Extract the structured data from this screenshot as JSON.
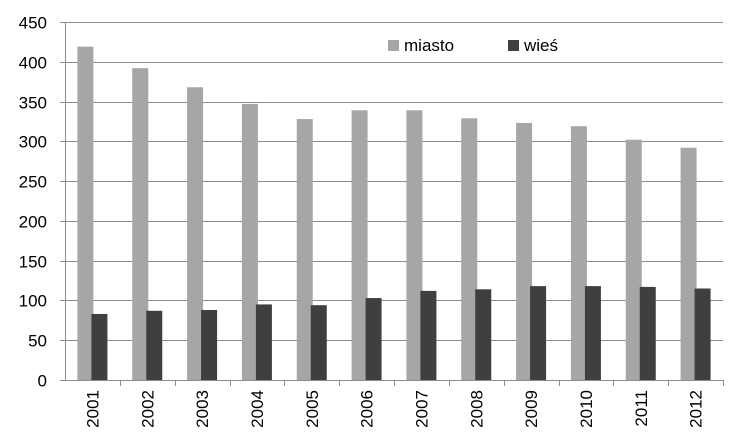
{
  "chart_data": {
    "type": "bar",
    "title": "",
    "xlabel": "",
    "ylabel": "",
    "categories": [
      "2001",
      "2002",
      "2003",
      "2004",
      "2005",
      "2006",
      "2007",
      "2008",
      "2009",
      "2010",
      "2011",
      "2012"
    ],
    "series": [
      {
        "name": "miasto",
        "color": "#a6a6a6",
        "values": [
          419,
          392,
          368,
          347,
          328,
          339,
          339,
          329,
          323,
          319,
          302,
          292
        ]
      },
      {
        "name": "wieś",
        "color": "#3f3f3f",
        "values": [
          83,
          87,
          88,
          95,
          94,
          103,
          112,
          114,
          118,
          118,
          117,
          115
        ]
      }
    ],
    "ylim": [
      0,
      450
    ],
    "yticks": [
      0,
      50,
      100,
      150,
      200,
      250,
      300,
      350,
      400,
      450
    ],
    "grid": "horizontal",
    "legend_position": "top-right",
    "x_tick_rotation": "vertical"
  }
}
